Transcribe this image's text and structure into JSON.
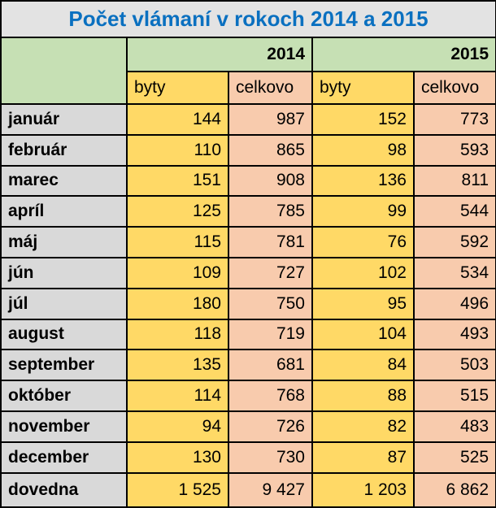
{
  "title": "Počet vlámaní v rokoch 2014 a 2015",
  "years": [
    "2014",
    "2015"
  ],
  "subheaders": [
    "byty",
    "celkovo",
    "byty",
    "celkovo"
  ],
  "rows": [
    {
      "label": "január",
      "values": [
        144,
        987,
        152,
        773
      ]
    },
    {
      "label": "február",
      "values": [
        110,
        865,
        98,
        593
      ]
    },
    {
      "label": "marec",
      "values": [
        151,
        908,
        136,
        811
      ]
    },
    {
      "label": "apríl",
      "values": [
        125,
        785,
        99,
        544
      ]
    },
    {
      "label": "máj",
      "values": [
        115,
        781,
        76,
        592
      ]
    },
    {
      "label": "jún",
      "values": [
        109,
        727,
        102,
        534
      ]
    },
    {
      "label": "júl",
      "values": [
        180,
        750,
        95,
        496
      ]
    },
    {
      "label": "august",
      "values": [
        118,
        719,
        104,
        493
      ]
    },
    {
      "label": "september",
      "values": [
        135,
        681,
        84,
        503
      ]
    },
    {
      "label": "október",
      "values": [
        114,
        768,
        88,
        515
      ]
    },
    {
      "label": "november",
      "values": [
        94,
        726,
        82,
        483
      ]
    },
    {
      "label": "december",
      "values": [
        130,
        730,
        87,
        525
      ]
    }
  ],
  "total": {
    "label": "dovedna",
    "values": [
      "1 525",
      "9 427",
      "1 203",
      "6 862"
    ]
  }
}
